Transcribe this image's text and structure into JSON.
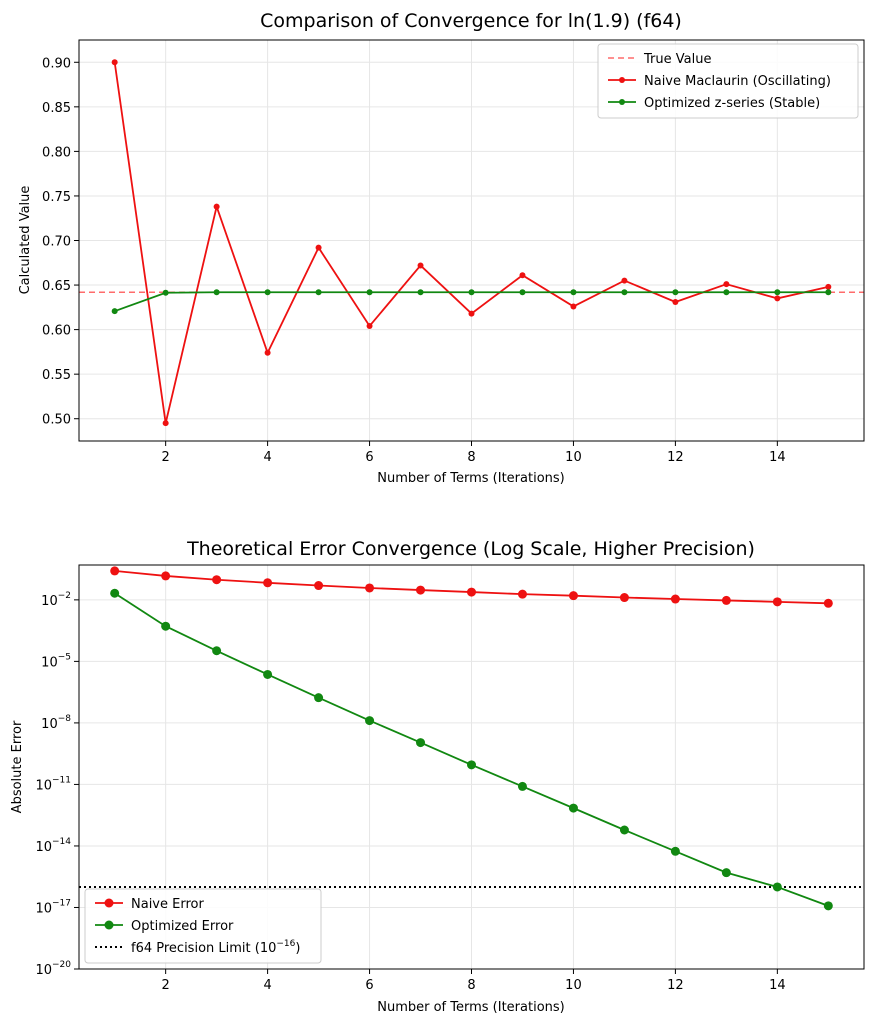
{
  "chart_data": [
    {
      "type": "line",
      "title": "Comparison of Convergence for ln(1.9) (f64)",
      "xlabel": "Number of Terms (Iterations)",
      "ylabel": "Calculated Value",
      "xlim": [
        0.3,
        15.7
      ],
      "ylim": [
        0.475,
        0.925
      ],
      "xticks": [
        2,
        4,
        6,
        8,
        10,
        12,
        14
      ],
      "xtick_labels": [
        "2",
        "4",
        "6",
        "8",
        "10",
        "12",
        "14"
      ],
      "yticks": [
        0.5,
        0.55,
        0.6,
        0.65,
        0.7,
        0.75,
        0.8,
        0.85,
        0.9
      ],
      "ytick_labels": [
        "0.50",
        "0.55",
        "0.60",
        "0.65",
        "0.70",
        "0.75",
        "0.80",
        "0.85",
        "0.90"
      ],
      "grid": true,
      "legend_position": "top-right",
      "hline": {
        "name": "True Value",
        "y": 0.6419,
        "color": "#ff6b6b",
        "style": "dashed"
      },
      "x": [
        1,
        2,
        3,
        4,
        5,
        6,
        7,
        8,
        9,
        10,
        11,
        12,
        13,
        14,
        15
      ],
      "series": [
        {
          "name": "Naive Maclaurin (Oscillating)",
          "color": "#ee1111",
          "values": [
            0.9,
            0.495,
            0.738,
            0.574,
            0.692,
            0.604,
            0.672,
            0.618,
            0.661,
            0.626,
            0.655,
            0.631,
            0.651,
            0.635,
            0.648
          ]
        },
        {
          "name": "Optimized z-series (Stable)",
          "color": "#118811",
          "values": [
            0.6207,
            0.6414,
            0.6419,
            0.6419,
            0.6419,
            0.6419,
            0.6419,
            0.6419,
            0.6419,
            0.6419,
            0.6419,
            0.6419,
            0.6419,
            0.6419,
            0.6419
          ]
        }
      ]
    },
    {
      "type": "line",
      "title": "Theoretical Error Convergence (Log Scale, Higher Precision)",
      "xlabel": "Number of Terms (Iterations)",
      "ylabel": "Absolute Error",
      "yscale": "log",
      "xlim": [
        0.3,
        15.7
      ],
      "ylim_log10": [
        -20,
        -0.3
      ],
      "xticks": [
        2,
        4,
        6,
        8,
        10,
        12,
        14
      ],
      "xtick_labels": [
        "2",
        "4",
        "6",
        "8",
        "10",
        "12",
        "14"
      ],
      "yticks_log10": [
        -20,
        -17,
        -14,
        -11,
        -8,
        -5,
        -2
      ],
      "ytick_labels": [
        "−20",
        "−17",
        "−14",
        "−11",
        "−8",
        "−5",
        "−2"
      ],
      "ytick_base": "10",
      "grid": true,
      "legend_position": "bottom-left",
      "hline": {
        "name": "f64 Precision Limit (10",
        "name_sup": "−16",
        "name_end": ")",
        "y": 1e-16,
        "color": "#000000",
        "style": "dotted"
      },
      "x": [
        1,
        2,
        3,
        4,
        5,
        6,
        7,
        8,
        9,
        10,
        11,
        12,
        13,
        14,
        15
      ],
      "series": [
        {
          "name": "Naive Error",
          "color": "#ee1111",
          "values": [
            0.258,
            0.147,
            0.096,
            0.068,
            0.05,
            0.038,
            0.03,
            0.024,
            0.019,
            0.016,
            0.013,
            0.011,
            0.0094,
            0.008,
            0.0068
          ]
        },
        {
          "name": "Optimized Error",
          "color": "#118811",
          "values": [
            0.021,
            0.00052,
            3.3e-05,
            2.3e-06,
            1.7e-07,
            1.3e-08,
            1.1e-09,
            9e-11,
            8e-12,
            7e-13,
            6e-14,
            5.5e-15,
            5e-16,
            1e-16,
            1.2e-17
          ]
        }
      ]
    }
  ]
}
